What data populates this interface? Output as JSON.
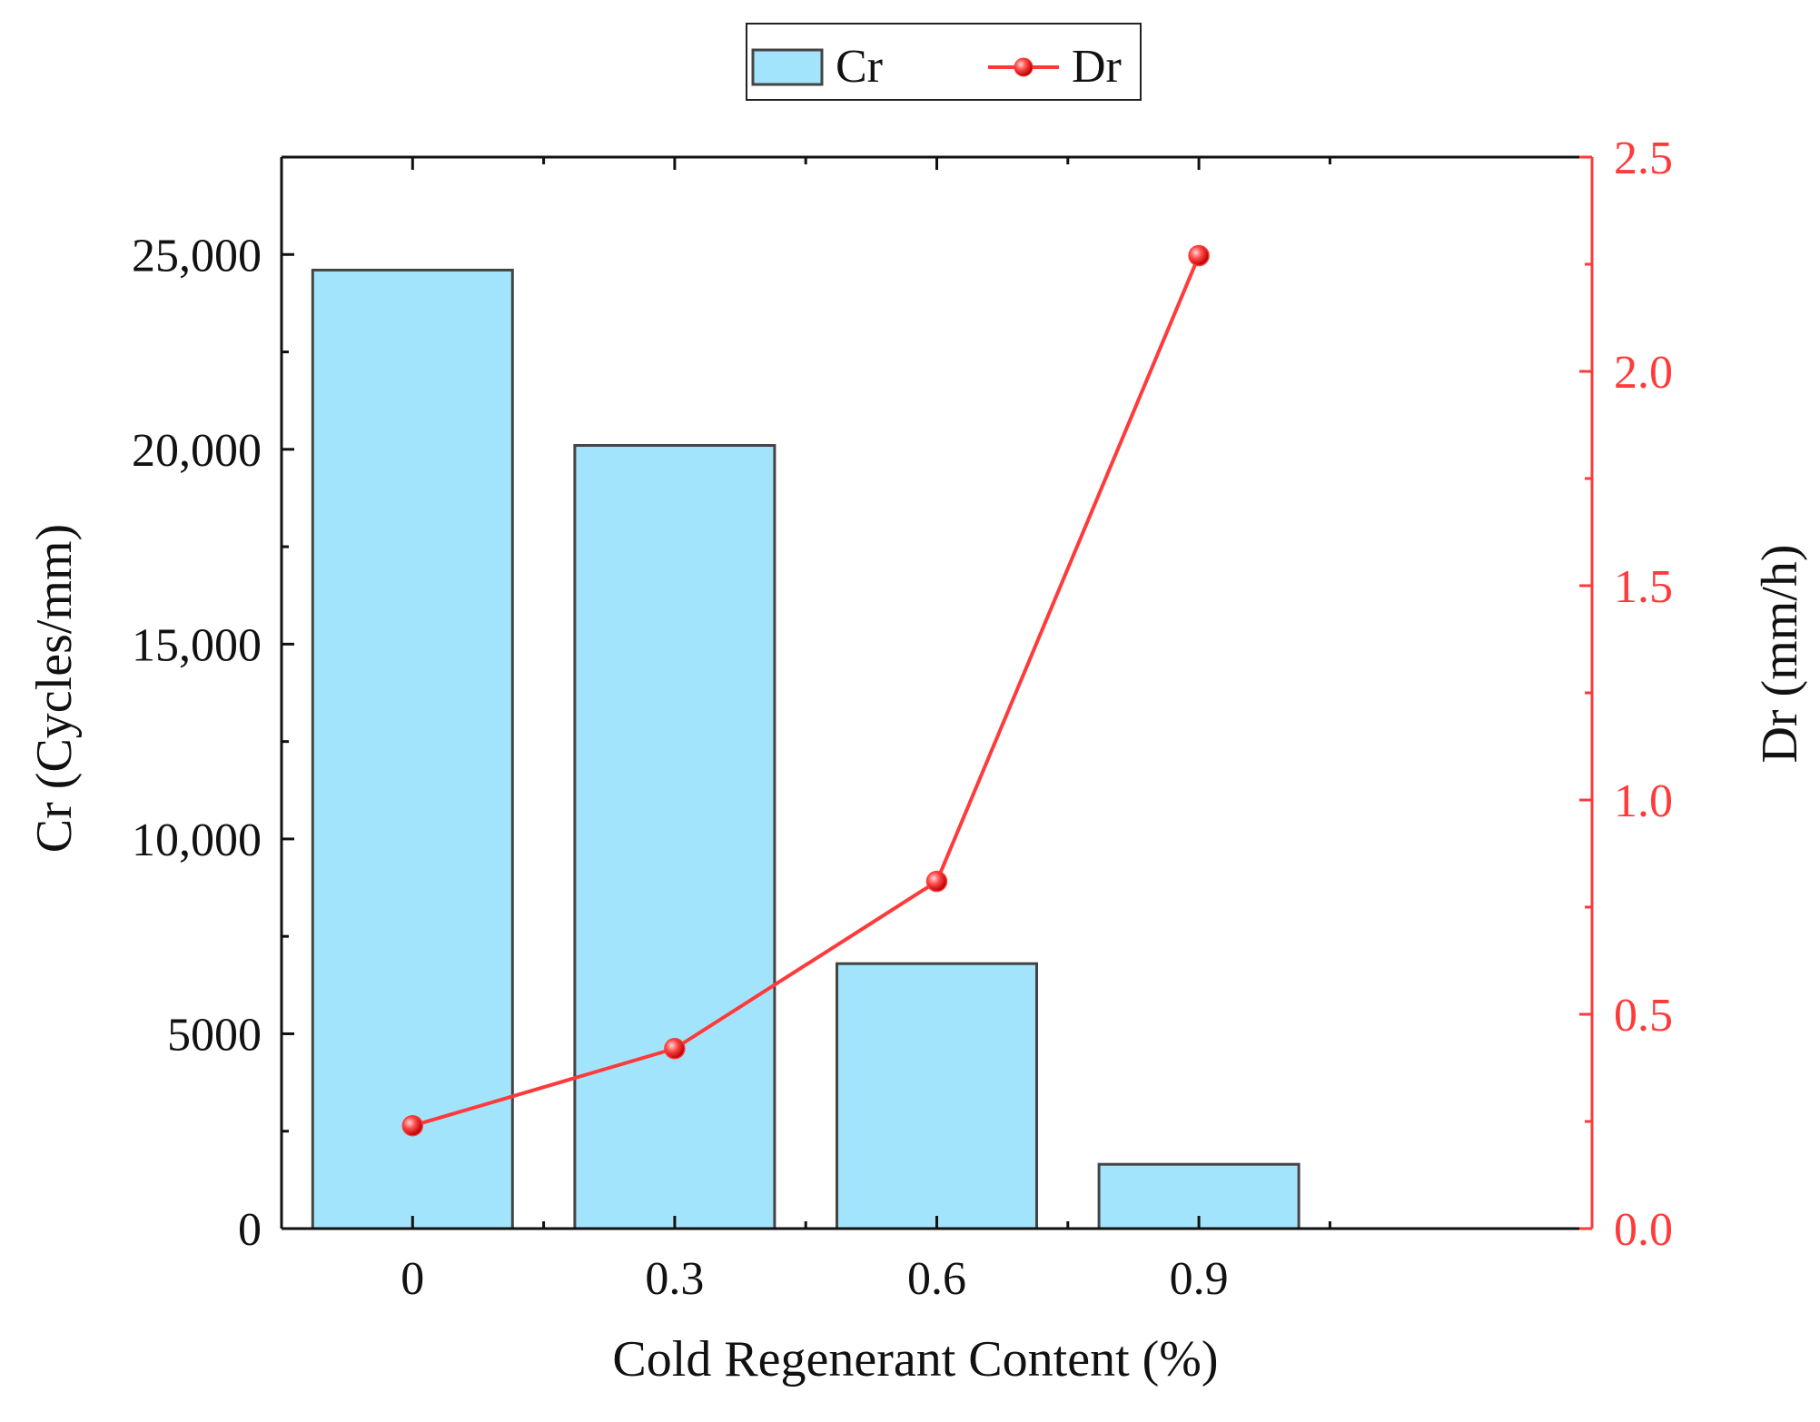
{
  "chart_data": {
    "type": "bar",
    "title": "",
    "xlabel": "Cold Regenerant Content (%)",
    "categories": [
      "0",
      "0.3",
      "0.6",
      "0.9"
    ],
    "series": [
      {
        "name": "Cr",
        "type": "bar",
        "axis": "left",
        "values": [
          24600,
          20100,
          6800,
          1650
        ]
      },
      {
        "name": "Dr",
        "type": "line",
        "axis": "right",
        "values": [
          0.24,
          0.42,
          0.81,
          2.27
        ]
      }
    ],
    "y_left": {
      "label": "Cr (Cycles/mm)",
      "ylim": [
        0,
        27500
      ],
      "ticks": [
        0,
        5000,
        10000,
        15000,
        20000,
        25000
      ],
      "tick_labels": [
        "0",
        "5000",
        "10,000",
        "15,000",
        "20,000",
        "25,000"
      ]
    },
    "y_right": {
      "label": "Dr (mm/h)",
      "ylim": [
        0,
        2.5
      ],
      "ticks": [
        0,
        0.5,
        1.0,
        1.5,
        2.0,
        2.5
      ],
      "tick_labels": [
        "0.0",
        "0.5",
        "1.0",
        "1.5",
        "2.0",
        "2.5"
      ]
    },
    "legend": {
      "placement": "top-center",
      "entries": [
        "Cr",
        "Dr"
      ]
    },
    "grid": false
  },
  "colors": {
    "bar_fill": "#a3e4fd",
    "bar_stroke": "#444444",
    "line": "#ff3a3a",
    "axis": "#111111",
    "right_axis": "#ff3a3a"
  }
}
